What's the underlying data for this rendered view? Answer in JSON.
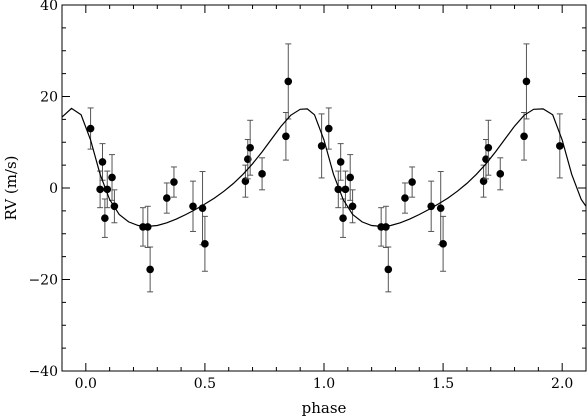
{
  "chart_data": {
    "type": "scatter",
    "title": "",
    "xlabel": "phase",
    "ylabel": "RV (m/s)",
    "xlim": [
      -0.1,
      2.1
    ],
    "ylim": [
      -40,
      40
    ],
    "x_ticks": [
      0.0,
      0.5,
      1.0,
      1.5,
      2.0
    ],
    "x_tick_labels": [
      "0.0",
      "0.5",
      "1.0",
      "1.5",
      "2.0"
    ],
    "y_ticks": [
      -40,
      -20,
      0,
      20,
      40
    ],
    "y_tick_labels": [
      "−40",
      "−20",
      "0",
      "20",
      "40"
    ],
    "grid": false,
    "marker_color": "#000000",
    "series": [
      {
        "kind": "points_with_errorbars",
        "points": [
          {
            "x": 0.02,
            "y": 13.0,
            "err": 4.5
          },
          {
            "x": 0.06,
            "y": -0.3,
            "err": 4.0
          },
          {
            "x": 0.07,
            "y": 5.7,
            "err": 4.0
          },
          {
            "x": 0.08,
            "y": -6.6,
            "err": 4.2
          },
          {
            "x": 0.09,
            "y": -0.3,
            "err": 4.0
          },
          {
            "x": 0.11,
            "y": 2.3,
            "err": 5.0
          },
          {
            "x": 0.12,
            "y": -4.0,
            "err": 3.6
          },
          {
            "x": 0.24,
            "y": -8.5,
            "err": 4.2
          },
          {
            "x": 0.26,
            "y": -8.5,
            "err": 4.5
          },
          {
            "x": 0.27,
            "y": -17.8,
            "err": 4.9
          },
          {
            "x": 0.34,
            "y": -2.2,
            "err": 3.3
          },
          {
            "x": 0.37,
            "y": 1.3,
            "err": 3.3
          },
          {
            "x": 0.45,
            "y": -4.0,
            "err": 5.5
          },
          {
            "x": 0.49,
            "y": -4.4,
            "err": 8.0
          },
          {
            "x": 0.5,
            "y": -12.2,
            "err": 6.0
          },
          {
            "x": 0.67,
            "y": 1.5,
            "err": 3.5
          },
          {
            "x": 0.68,
            "y": 6.3,
            "err": 4.3
          },
          {
            "x": 0.69,
            "y": 8.8,
            "err": 6.0
          },
          {
            "x": 0.74,
            "y": 3.1,
            "err": 3.5
          },
          {
            "x": 0.84,
            "y": 11.3,
            "err": 5.2
          },
          {
            "x": 0.85,
            "y": 23.3,
            "err": 8.2
          },
          {
            "x": 0.99,
            "y": 9.2,
            "err": 7.0
          },
          {
            "x": 1.02,
            "y": 13.0,
            "err": 4.5
          },
          {
            "x": 1.06,
            "y": -0.3,
            "err": 4.0
          },
          {
            "x": 1.07,
            "y": 5.7,
            "err": 4.0
          },
          {
            "x": 1.08,
            "y": -6.6,
            "err": 4.2
          },
          {
            "x": 1.09,
            "y": -0.3,
            "err": 4.0
          },
          {
            "x": 1.11,
            "y": 2.3,
            "err": 5.0
          },
          {
            "x": 1.12,
            "y": -4.0,
            "err": 3.6
          },
          {
            "x": 1.24,
            "y": -8.5,
            "err": 4.2
          },
          {
            "x": 1.26,
            "y": -8.5,
            "err": 4.5
          },
          {
            "x": 1.27,
            "y": -17.8,
            "err": 4.9
          },
          {
            "x": 1.34,
            "y": -2.2,
            "err": 3.3
          },
          {
            "x": 1.37,
            "y": 1.3,
            "err": 3.3
          },
          {
            "x": 1.45,
            "y": -4.0,
            "err": 5.5
          },
          {
            "x": 1.49,
            "y": -4.4,
            "err": 8.0
          },
          {
            "x": 1.5,
            "y": -12.2,
            "err": 6.0
          },
          {
            "x": 1.67,
            "y": 1.5,
            "err": 3.5
          },
          {
            "x": 1.68,
            "y": 6.3,
            "err": 4.3
          },
          {
            "x": 1.69,
            "y": 8.8,
            "err": 6.0
          },
          {
            "x": 1.74,
            "y": 3.1,
            "err": 3.5
          },
          {
            "x": 1.84,
            "y": 11.3,
            "err": 5.2
          },
          {
            "x": 1.85,
            "y": 23.3,
            "err": 8.2
          },
          {
            "x": 1.99,
            "y": 9.2,
            "err": 7.0
          }
        ]
      },
      {
        "kind": "curve",
        "x": [
          -0.1,
          -0.06,
          -0.02,
          0.02,
          0.06,
          0.1,
          0.14,
          0.18,
          0.22,
          0.26,
          0.3,
          0.34,
          0.38,
          0.42,
          0.46,
          0.5,
          0.54,
          0.58,
          0.62,
          0.66,
          0.7,
          0.74,
          0.78,
          0.82,
          0.86,
          0.9,
          0.93,
          0.96,
          1.0,
          1.04,
          1.08,
          1.12,
          1.16,
          1.2,
          1.24,
          1.28,
          1.32,
          1.36,
          1.4,
          1.44,
          1.48,
          1.52,
          1.56,
          1.6,
          1.64,
          1.68,
          1.72,
          1.76,
          1.8,
          1.84,
          1.88,
          1.92,
          1.96,
          2.0,
          2.04,
          2.08,
          2.1
        ],
        "y": [
          15.5,
          17.4,
          16.0,
          10.5,
          3.0,
          -2.5,
          -5.8,
          -7.4,
          -8.2,
          -8.4,
          -8.2,
          -7.6,
          -6.8,
          -5.8,
          -4.7,
          -3.5,
          -2.2,
          -0.7,
          1.0,
          3.0,
          5.3,
          7.9,
          10.7,
          13.5,
          15.9,
          17.2,
          17.3,
          16.0,
          10.5,
          3.0,
          -2.5,
          -5.8,
          -7.4,
          -8.2,
          -8.4,
          -8.2,
          -7.6,
          -6.8,
          -5.8,
          -4.7,
          -3.5,
          -2.2,
          -0.7,
          1.0,
          3.0,
          5.3,
          7.9,
          10.7,
          13.5,
          15.9,
          17.2,
          17.3,
          16.0,
          10.5,
          3.0,
          -2.5,
          -4.0
        ]
      }
    ]
  }
}
